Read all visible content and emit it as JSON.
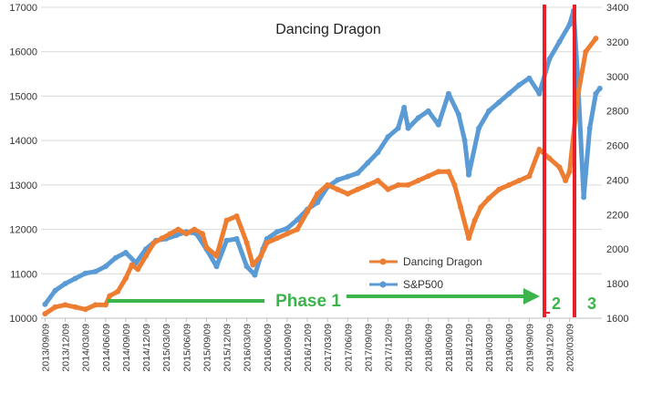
{
  "chart_data": {
    "type": "line",
    "title": "Dancing Dragon",
    "x_categories": [
      "2013/09/09",
      "2013/12/09",
      "2014/03/09",
      "2014/06/09",
      "2014/09/09",
      "2014/12/09",
      "2015/03/09",
      "2015/06/09",
      "2015/09/09",
      "2015/12/09",
      "2016/03/09",
      "2016/06/09",
      "2016/09/09",
      "2016/12/09",
      "2017/03/09",
      "2017/06/09",
      "2017/09/09",
      "2017/12/09",
      "2018/03/09",
      "2018/06/09",
      "2018/09/09",
      "2018/12/09",
      "2019/03/09",
      "2019/06/09",
      "2019/09/09",
      "2019/12/09",
      "2020/03/09"
    ],
    "y_left": {
      "min": 10000,
      "max": 17000,
      "ticks": [
        "10000",
        "11000",
        "12000",
        "13000",
        "14000",
        "15000",
        "16000",
        "17000"
      ]
    },
    "y_right": {
      "min": 1600,
      "max": 3400,
      "ticks": [
        "1600",
        "1800",
        "2000",
        "2200",
        "2400",
        "2600",
        "2800",
        "3000",
        "3200",
        "3400"
      ]
    },
    "grid": "horizontal",
    "legend_placement": "lower-right inside plot",
    "series": [
      {
        "name": "Dancing Dragon",
        "axis": "left",
        "color": "#ED7D31",
        "points": [
          [
            0,
            10100
          ],
          [
            0.5,
            10250
          ],
          [
            1,
            10300
          ],
          [
            1.5,
            10250
          ],
          [
            2,
            10200
          ],
          [
            2.5,
            10300
          ],
          [
            3,
            10300
          ],
          [
            3.2,
            10500
          ],
          [
            3.6,
            10600
          ],
          [
            4,
            10900
          ],
          [
            4.3,
            11200
          ],
          [
            4.6,
            11100
          ],
          [
            5,
            11400
          ],
          [
            5.4,
            11700
          ],
          [
            5.8,
            11800
          ],
          [
            6.2,
            11900
          ],
          [
            6.6,
            12000
          ],
          [
            7,
            11900
          ],
          [
            7.4,
            12000
          ],
          [
            7.8,
            11900
          ],
          [
            8,
            11600
          ],
          [
            8.5,
            11400
          ],
          [
            9,
            12200
          ],
          [
            9.5,
            12300
          ],
          [
            10,
            11700
          ],
          [
            10.3,
            11200
          ],
          [
            10.7,
            11400
          ],
          [
            11,
            11700
          ],
          [
            11.5,
            11800
          ],
          [
            12,
            11900
          ],
          [
            12.5,
            12000
          ],
          [
            13,
            12400
          ],
          [
            13.5,
            12800
          ],
          [
            14,
            13000
          ],
          [
            14.5,
            12900
          ],
          [
            15,
            12800
          ],
          [
            15.5,
            12900
          ],
          [
            16,
            13000
          ],
          [
            16.5,
            13100
          ],
          [
            17,
            12900
          ],
          [
            17.5,
            13000
          ],
          [
            18,
            13000
          ],
          [
            18.5,
            13100
          ],
          [
            19,
            13200
          ],
          [
            19.5,
            13300
          ],
          [
            20,
            13300
          ],
          [
            20.3,
            13000
          ],
          [
            20.6,
            12500
          ],
          [
            21,
            11800
          ],
          [
            21.3,
            12200
          ],
          [
            21.6,
            12500
          ],
          [
            22,
            12700
          ],
          [
            22.5,
            12900
          ],
          [
            23,
            13000
          ],
          [
            23.5,
            13100
          ],
          [
            24,
            13200
          ],
          [
            24.5,
            13800
          ],
          [
            25,
            13600
          ],
          [
            25.5,
            13400
          ],
          [
            25.8,
            13100
          ],
          [
            26,
            13300
          ],
          [
            26.4,
            15000
          ],
          [
            26.8,
            16000
          ],
          [
            27.3,
            16300
          ]
        ]
      },
      {
        "name": "S&P500",
        "axis": "right",
        "color": "#5B9BD5",
        "points": [
          [
            0,
            1680
          ],
          [
            0.5,
            1760
          ],
          [
            1,
            1800
          ],
          [
            1.5,
            1830
          ],
          [
            2,
            1860
          ],
          [
            2.5,
            1870
          ],
          [
            3,
            1900
          ],
          [
            3.5,
            1950
          ],
          [
            4,
            1980
          ],
          [
            4.5,
            1920
          ],
          [
            5,
            2000
          ],
          [
            5.5,
            2050
          ],
          [
            6,
            2060
          ],
          [
            6.5,
            2080
          ],
          [
            7,
            2100
          ],
          [
            7.5,
            2090
          ],
          [
            8,
            2000
          ],
          [
            8.5,
            1900
          ],
          [
            9,
            2050
          ],
          [
            9.5,
            2060
          ],
          [
            10,
            1900
          ],
          [
            10.4,
            1850
          ],
          [
            10.8,
            2000
          ],
          [
            11,
            2060
          ],
          [
            11.5,
            2100
          ],
          [
            12,
            2120
          ],
          [
            12.5,
            2170
          ],
          [
            13,
            2230
          ],
          [
            13.5,
            2270
          ],
          [
            14,
            2360
          ],
          [
            14.5,
            2400
          ],
          [
            15,
            2420
          ],
          [
            15.5,
            2440
          ],
          [
            16,
            2500
          ],
          [
            16.5,
            2560
          ],
          [
            17,
            2650
          ],
          [
            17.5,
            2700
          ],
          [
            17.8,
            2820
          ],
          [
            18,
            2700
          ],
          [
            18.5,
            2760
          ],
          [
            19,
            2800
          ],
          [
            19.5,
            2720
          ],
          [
            20,
            2900
          ],
          [
            20.5,
            2780
          ],
          [
            20.8,
            2630
          ],
          [
            21,
            2430
          ],
          [
            21.5,
            2700
          ],
          [
            22,
            2800
          ],
          [
            22.5,
            2850
          ],
          [
            23,
            2900
          ],
          [
            23.5,
            2950
          ],
          [
            24,
            2990
          ],
          [
            24.5,
            2900
          ],
          [
            25,
            3100
          ],
          [
            25.5,
            3200
          ],
          [
            26,
            3300
          ],
          [
            26.2,
            3380
          ],
          [
            26.4,
            3000
          ],
          [
            26.7,
            2300
          ],
          [
            27,
            2700
          ],
          [
            27.3,
            2900
          ],
          [
            27.5,
            2930
          ]
        ]
      }
    ],
    "annotations": {
      "phase_labels": [
        "Phase 1",
        "2",
        "3"
      ],
      "vertical_lines_color": "#E8202A",
      "arrow_color": "#3CB44B"
    }
  }
}
